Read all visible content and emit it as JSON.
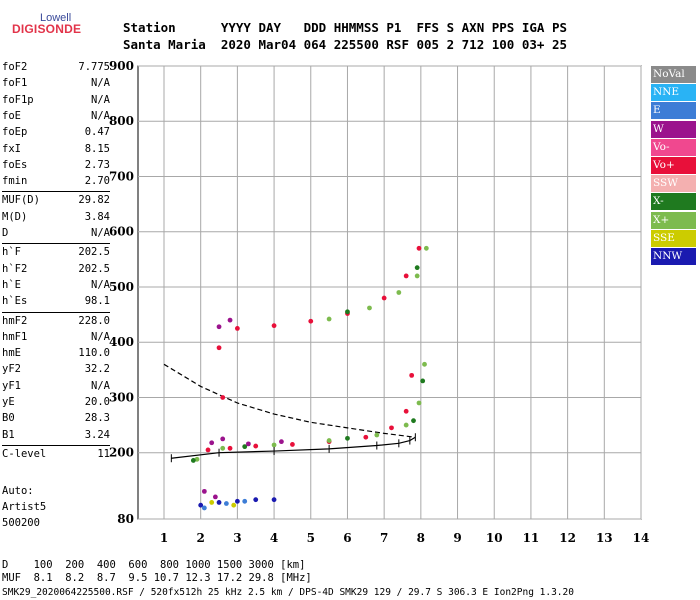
{
  "logo": {
    "top": "Lowell",
    "bottom": "DIGISONDE"
  },
  "header": {
    "line1": "Station      YYYY DAY   DDD HHMMSS P1  FFS S AXN PPS IGA PS",
    "line2": "Santa Maria  2020 Mar04 064 225500 RSF 005 2 712 100 03+ 25"
  },
  "params": [
    {
      "name": "foF2",
      "value": "7.775"
    },
    {
      "name": "foF1",
      "value": "N/A"
    },
    {
      "name": "foF1p",
      "value": "N/A"
    },
    {
      "name": "foE",
      "value": "N/A"
    },
    {
      "name": "foEp",
      "value": "0.47"
    },
    {
      "name": "fxI",
      "value": "8.15"
    },
    {
      "name": "foEs",
      "value": "2.73"
    },
    {
      "name": "fmin",
      "value": "2.70"
    },
    {
      "name": "MUF(D)",
      "value": "29.82"
    },
    {
      "name": "M(D)",
      "value": "3.84"
    },
    {
      "name": "D",
      "value": "N/A"
    },
    {
      "name": "h`F",
      "value": "202.5"
    },
    {
      "name": "h`F2",
      "value": "202.5"
    },
    {
      "name": "h`E",
      "value": "N/A"
    },
    {
      "name": "h`Es",
      "value": "98.1"
    },
    {
      "name": "hmF2",
      "value": "228.0"
    },
    {
      "name": "hmF1",
      "value": "N/A"
    },
    {
      "name": "hmE",
      "value": "110.0"
    },
    {
      "name": "yF2",
      "value": "32.2"
    },
    {
      "name": "yF1",
      "value": "N/A"
    },
    {
      "name": "yE",
      "value": "20.0"
    },
    {
      "name": "B0",
      "value": "28.3"
    },
    {
      "name": "B1",
      "value": "3.24"
    },
    {
      "name": "C-level",
      "value": "11"
    }
  ],
  "auto": {
    "line1": "Auto:",
    "line2": "Artist5",
    "line3": "500200"
  },
  "footer": {
    "d_line": "D    100  200  400  600  800 1000 1500 3000 [km]",
    "muf_line": "MUF  8.1  8.2  8.7  9.5 10.7 12.3 17.2 29.8 [MHz]",
    "info_line": "SMK29_2020064225500.RSF / 520fx512h 25 kHz 2.5 km / DPS-4D SMK29 129 / 29.7 S 306.3 E Ion2Png 1.3.20"
  },
  "legend": [
    {
      "label": "NoVal",
      "color": "#8a8a8a"
    },
    {
      "label": "NNE",
      "color": "#29b3f5"
    },
    {
      "label": "E",
      "color": "#3d7dd6"
    },
    {
      "label": "W",
      "color": "#9b138d"
    },
    {
      "label": "Vo-",
      "color": "#f0488f"
    },
    {
      "label": "Vo+",
      "color": "#e8103a"
    },
    {
      "label": "SSW",
      "color": "#f4b0b0"
    },
    {
      "label": "X-",
      "color": "#1f7a1f"
    },
    {
      "label": "X+",
      "color": "#7dbb4e"
    },
    {
      "label": "SSE",
      "color": "#cccc00"
    },
    {
      "label": "NNW",
      "color": "#1a1ab0"
    }
  ],
  "chart_data": {
    "type": "scatter",
    "xlim": [
      1,
      14
    ],
    "ylim": [
      80,
      900
    ],
    "x_ticks": [
      "1",
      "2",
      "3",
      "4",
      "5",
      "6",
      "7",
      "8",
      "9",
      "10",
      "11",
      "12",
      "13",
      "14"
    ],
    "y_ticks": [
      "80",
      "200",
      "300",
      "400",
      "500",
      "600",
      "700",
      "800",
      "900"
    ],
    "grid": true,
    "series": [
      {
        "name": "Vo+",
        "color": "#e8103a",
        "points": [
          [
            2.2,
            205
          ],
          [
            2.8,
            208
          ],
          [
            3.5,
            212
          ],
          [
            4.5,
            215
          ],
          [
            5.5,
            220
          ],
          [
            6.5,
            228
          ],
          [
            7.2,
            245
          ],
          [
            7.6,
            275
          ],
          [
            7.75,
            340
          ],
          [
            3.0,
            425
          ],
          [
            4.0,
            430
          ],
          [
            5.0,
            438
          ],
          [
            6.0,
            452
          ],
          [
            7.0,
            480
          ],
          [
            7.6,
            520
          ],
          [
            7.95,
            570
          ],
          [
            2.6,
            300
          ],
          [
            2.5,
            390
          ]
        ]
      },
      {
        "name": "X+",
        "color": "#7dbb4e",
        "points": [
          [
            2.6,
            208
          ],
          [
            4.0,
            214
          ],
          [
            5.5,
            222
          ],
          [
            6.8,
            232
          ],
          [
            7.6,
            250
          ],
          [
            7.95,
            290
          ],
          [
            8.1,
            360
          ],
          [
            5.5,
            442
          ],
          [
            6.6,
            462
          ],
          [
            7.4,
            490
          ],
          [
            7.9,
            520
          ],
          [
            8.15,
            570
          ],
          [
            1.9,
            188
          ]
        ]
      },
      {
        "name": "X-",
        "color": "#1f7a1f",
        "points": [
          [
            3.2,
            211
          ],
          [
            6.0,
            226
          ],
          [
            7.8,
            258
          ],
          [
            8.05,
            330
          ],
          [
            6.0,
            455
          ],
          [
            7.9,
            535
          ],
          [
            1.8,
            186
          ]
        ]
      },
      {
        "name": "W",
        "color": "#9b138d",
        "points": [
          [
            2.3,
            218
          ],
          [
            2.6,
            225
          ],
          [
            3.3,
            216
          ],
          [
            4.2,
            220
          ],
          [
            2.5,
            428
          ],
          [
            2.8,
            440
          ],
          [
            2.1,
            130
          ],
          [
            2.4,
            120
          ]
        ]
      },
      {
        "name": "NNW",
        "color": "#1a1ab0",
        "points": [
          [
            2.0,
            105
          ],
          [
            2.5,
            110
          ],
          [
            3.0,
            112
          ],
          [
            3.5,
            115
          ],
          [
            4.0,
            115
          ]
        ]
      },
      {
        "name": "E",
        "color": "#3d7dd6",
        "points": [
          [
            2.1,
            100
          ],
          [
            2.7,
            108
          ],
          [
            3.2,
            112
          ]
        ]
      },
      {
        "name": "SSE",
        "color": "#cccc00",
        "points": [
          [
            2.3,
            110
          ],
          [
            2.9,
            105
          ]
        ]
      }
    ],
    "profile_line": {
      "label": "trace",
      "points": [
        [
          1.2,
          190
        ],
        [
          2.5,
          200
        ],
        [
          4.0,
          203
        ],
        [
          5.5,
          207
        ],
        [
          6.8,
          213
        ],
        [
          7.4,
          217
        ],
        [
          7.7,
          222
        ],
        [
          7.85,
          228
        ]
      ]
    },
    "profile_dashed": {
      "points": [
        [
          1.0,
          360
        ],
        [
          1.5,
          340
        ],
        [
          2.0,
          320
        ],
        [
          2.5,
          305
        ],
        [
          3.0,
          290
        ],
        [
          4.0,
          270
        ],
        [
          5.0,
          255
        ],
        [
          6.0,
          245
        ],
        [
          7.0,
          235
        ],
        [
          7.6,
          230
        ],
        [
          7.85,
          228
        ]
      ]
    }
  }
}
